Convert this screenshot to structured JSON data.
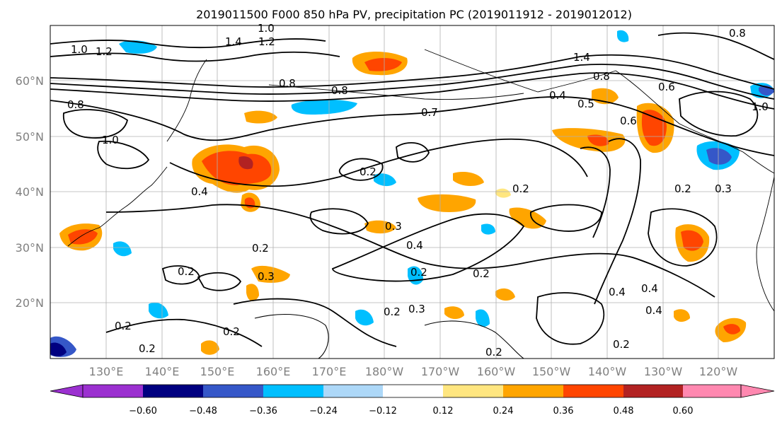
{
  "title": "2019011500 F000 850 hPa PV, precipitation PC (2019011912 - 2019012012)",
  "map": {
    "lon_ticks": [
      "130°E",
      "140°E",
      "150°E",
      "160°E",
      "170°E",
      "180°W",
      "170°W",
      "160°W",
      "150°W",
      "140°W",
      "130°W",
      "120°W"
    ],
    "lat_ticks": [
      "20°N",
      "30°N",
      "40°N",
      "50°N",
      "60°N"
    ],
    "lon_range": [
      120,
      250
    ],
    "lat_range": [
      10,
      70
    ],
    "contour_labels": [
      "1.0",
      "1.2",
      "1.4",
      "1.0",
      "1.4",
      "1.2",
      "0.8",
      "0.8",
      "1.0",
      "0.8",
      "0.8",
      "0.7",
      "0.4",
      "0.5",
      "0.6",
      "0.6",
      "1.0",
      "0.8",
      "0.4",
      "0.3",
      "0.2",
      "0.2",
      "0.4",
      "0.2",
      "0.2",
      "0.3",
      "0.4",
      "0.2",
      "0.3",
      "0.2",
      "0.2",
      "0.3",
      "0.2",
      "0.2",
      "0.4",
      "0.2",
      "0.4",
      "0.2",
      "0.2",
      "0.2"
    ]
  },
  "colorbar": {
    "ticks": [
      "−0.60",
      "−0.48",
      "−0.36",
      "−0.24",
      "−0.12",
      "0.12",
      "0.24",
      "0.36",
      "0.48",
      "0.60"
    ],
    "colors": [
      "#9b30d0",
      "#000080",
      "#3557c8",
      "#00bfff",
      "#add8f8",
      "#ffffff",
      "#ffe680",
      "#ffa500",
      "#ff4500",
      "#b22222",
      "#ff88b0"
    ]
  },
  "colors": {
    "pos_low": "#ffe680",
    "pos_mid": "#ffa500",
    "pos_high": "#ff4500",
    "pos_top": "#b22222",
    "neg_low": "#add8f8",
    "neg_mid": "#00bfff",
    "neg_high": "#3557c8",
    "neg_top": "#000080"
  }
}
